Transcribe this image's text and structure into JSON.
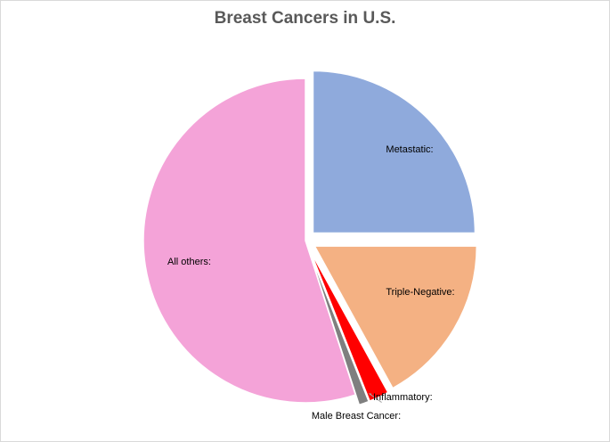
{
  "chart_data": {
    "type": "pie",
    "title": "Breast Cancers in U.S.",
    "start_angle_deg": 0,
    "direction": "clockwise",
    "slices": [
      {
        "label": "Metastatic:",
        "value": 25,
        "color": "#8faadc",
        "exploded": true
      },
      {
        "label": "Triple-Negative:",
        "value": 17,
        "color": "#f4b183",
        "exploded": true
      },
      {
        "label": "Inflammatory:",
        "value": 2,
        "color": "#ff0000",
        "exploded": true
      },
      {
        "label": "Male Breast Cancer:",
        "value": 1,
        "color": "#7f7f7f",
        "exploded": true
      },
      {
        "label": "All others:",
        "value": 55,
        "color": "#f4a3d8",
        "exploded": false
      }
    ],
    "legend": "none"
  }
}
